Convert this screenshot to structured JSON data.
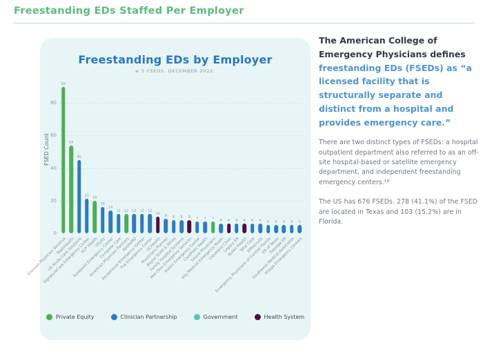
{
  "page": {
    "header": "Freestanding EDs Staffed Per Employer"
  },
  "chart_data": {
    "type": "bar",
    "title": "Freestanding EDs by Employer",
    "subtitle": "≥ 5 FSEDS. DECEMBER 2022.",
    "ylabel": "FSED Count",
    "ylim": [
      0,
      95
    ],
    "yticks": [
      0,
      20,
      40,
      60,
      80
    ],
    "grid": "horizontal-dashed",
    "legend_position": "bottom",
    "legend": [
      {
        "label": "Private Equity",
        "color": "#4CAF50"
      },
      {
        "label": "Clinician Partnership",
        "color": "#2B7CBE"
      },
      {
        "label": "Government",
        "color": "#56C4B8"
      },
      {
        "label": "Health System",
        "color": "#4B0E46"
      }
    ],
    "bars": [
      {
        "label": "Envision Physician Services",
        "value": 90,
        "category": "Private Equity"
      },
      {
        "label": "TeamHealth",
        "value": 54,
        "category": "Private Equity"
      },
      {
        "label": "US Acute Care Solutions",
        "value": 45,
        "category": "Clinician Partnership"
      },
      {
        "label": "SignatureCare Emergency Center",
        "value": 21,
        "category": "Clinician Partnership"
      },
      {
        "label": "SCP Health",
        "value": 20,
        "category": "Private Equity"
      },
      {
        "label": "Vituity",
        "value": 16,
        "category": "Clinician Partnership"
      },
      {
        "label": "Surepoint Emergency Center",
        "value": 14,
        "category": "Clinician Partnership"
      },
      {
        "label": "Complete Care",
        "value": 12,
        "category": "Clinician Partnership"
      },
      {
        "label": "American Physician Partners",
        "value": 12,
        "category": "Private Equity"
      },
      {
        "label": "ApolloMD",
        "value": 12,
        "category": "Clinician Partnership"
      },
      {
        "label": "Exceptional Emergency Center",
        "value": 12,
        "category": "Clinician Partnership"
      },
      {
        "label": "The Emergency Center",
        "value": 12,
        "category": "Clinician Partnership"
      },
      {
        "label": "UCHealth",
        "value": 10,
        "category": "Health System"
      },
      {
        "label": "Physicians Premier",
        "value": 9,
        "category": "Clinician Partnership"
      },
      {
        "label": "Baylor Scott & White",
        "value": 8,
        "category": "Clinician Partnership"
      },
      {
        "label": "Family Hospital Systems",
        "value": 8,
        "category": "Clinician Partnership"
      },
      {
        "label": "Mid-Ohio Emergency Services",
        "value": 8,
        "category": "Health System"
      },
      {
        "label": "Austin Emergency Center",
        "value": 7,
        "category": "Clinician Partnership"
      },
      {
        "label": "CarePoint Health",
        "value": 7,
        "category": "Clinician Partnership"
      },
      {
        "label": "Sound Physicians",
        "value": 7,
        "category": "Private Equity"
      },
      {
        "label": "Ally Medical Emergency Room",
        "value": 6,
        "category": "Clinician Partnership"
      },
      {
        "label": "Cleveland Clinic",
        "value": 6,
        "category": "Health System"
      },
      {
        "label": "Legacy ER",
        "value": 6,
        "category": "Clinician Partnership"
      },
      {
        "label": "Nutex Health",
        "value": 6,
        "category": "Health System"
      },
      {
        "label": "Total Care",
        "value": 6,
        "category": "Clinician Partnership"
      },
      {
        "label": "EMrecruits",
        "value": 6,
        "category": "Clinician Partnership"
      },
      {
        "label": "Emergency Physicians of Central Florida",
        "value": 5,
        "category": "Clinician Partnership"
      },
      {
        "label": "ER of Texas",
        "value": 5,
        "category": "Clinician Partnership"
      },
      {
        "label": "Prestige ER",
        "value": 5,
        "category": "Clinician Partnership"
      },
      {
        "label": "Southwest Medical Associates",
        "value": 5,
        "category": "Clinician Partnership"
      },
      {
        "label": "Village Emergency Centers",
        "value": 5,
        "category": "Clinician Partnership"
      }
    ]
  },
  "sidebar": {
    "heading_plain": "The American College of Emergency Physicians defines",
    "heading_highlight": "freestanding EDs (FSEDs) as “a licensed facility that is structurally separate and distinct from a hospital and provides emergency care.”",
    "para1": "There are two distinct types of FSEDs: a hospital outpatient department also referred to as an off-site hospital-based or satellite emergency department, and independent freestanding emergency centers.¹⁸",
    "para2": "The US has 676 FSEDs. 278 (41.1%) of the FSED are located in Texas and 103 (15.2%) are in Florida."
  }
}
